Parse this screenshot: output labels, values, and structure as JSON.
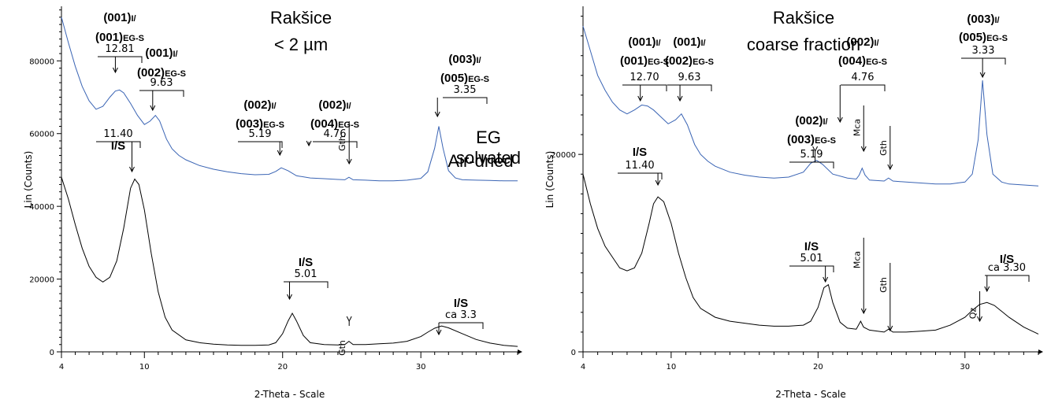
{
  "chart_data": [
    {
      "type": "line",
      "title": "Rakšice",
      "subtitle": "< 2 µm",
      "xlabel": "2-Theta - Scale",
      "ylabel": "Lin (Counts)",
      "xlim": [
        4,
        37
      ],
      "ylim": [
        0,
        95000
      ],
      "x_ticks": [
        4,
        10,
        20,
        30
      ],
      "y_ticks": [
        0,
        20000,
        40000,
        60000,
        80000
      ],
      "grid": false,
      "series": [
        {
          "name": "EG solvated",
          "color": "#3a64b4",
          "points": [
            [
              4,
              92000
            ],
            [
              4.5,
              85000
            ],
            [
              5,
              78500
            ],
            [
              5.5,
              73000
            ],
            [
              6,
              69000
            ],
            [
              6.5,
              66700
            ],
            [
              7,
              67500
            ],
            [
              7.5,
              70000
            ],
            [
              7.9,
              71700
            ],
            [
              8.2,
              72000
            ],
            [
              8.5,
              71200
            ],
            [
              9,
              68300
            ],
            [
              9.5,
              65000
            ],
            [
              10,
              62500
            ],
            [
              10.4,
              63400
            ],
            [
              10.8,
              65000
            ],
            [
              11.1,
              63500
            ],
            [
              11.6,
              58500
            ],
            [
              12,
              55800
            ],
            [
              12.5,
              54000
            ],
            [
              13,
              52800
            ],
            [
              14,
              51200
            ],
            [
              15,
              50200
            ],
            [
              16,
              49500
            ],
            [
              17,
              49000
            ],
            [
              18,
              48700
            ],
            [
              19,
              48800
            ],
            [
              19.5,
              49600
            ],
            [
              19.9,
              50600
            ],
            [
              20.4,
              49800
            ],
            [
              21,
              48400
            ],
            [
              22,
              47800
            ],
            [
              23,
              47600
            ],
            [
              24,
              47400
            ],
            [
              24.5,
              47300
            ],
            [
              24.8,
              48000
            ],
            [
              25.1,
              47300
            ],
            [
              26,
              47200
            ],
            [
              27,
              47000
            ],
            [
              28,
              47000
            ],
            [
              29,
              47200
            ],
            [
              30,
              47700
            ],
            [
              30.5,
              49500
            ],
            [
              31,
              56000
            ],
            [
              31.3,
              62000
            ],
            [
              31.6,
              56000
            ],
            [
              32,
              49800
            ],
            [
              32.5,
              47800
            ],
            [
              33,
              47300
            ],
            [
              34,
              47200
            ],
            [
              35,
              47100
            ],
            [
              36,
              47000
            ],
            [
              37,
              47000
            ]
          ]
        },
        {
          "name": "Air-dried",
          "color": "#000000",
          "points": [
            [
              4,
              48000
            ],
            [
              4.5,
              42000
            ],
            [
              5,
              35000
            ],
            [
              5.5,
              28500
            ],
            [
              6,
              23500
            ],
            [
              6.5,
              20500
            ],
            [
              7,
              19200
            ],
            [
              7.5,
              20500
            ],
            [
              8,
              25000
            ],
            [
              8.5,
              34000
            ],
            [
              9,
              45000
            ],
            [
              9.3,
              47500
            ],
            [
              9.6,
              46000
            ],
            [
              10,
              39000
            ],
            [
              10.5,
              27000
            ],
            [
              11,
              16500
            ],
            [
              11.5,
              9500
            ],
            [
              12,
              6000
            ],
            [
              13,
              3300
            ],
            [
              14,
              2500
            ],
            [
              15,
              2100
            ],
            [
              16,
              1900
            ],
            [
              17,
              1800
            ],
            [
              18,
              1800
            ],
            [
              19,
              1900
            ],
            [
              19.5,
              2500
            ],
            [
              20,
              5000
            ],
            [
              20.4,
              8500
            ],
            [
              20.7,
              10600
            ],
            [
              21,
              8500
            ],
            [
              21.5,
              4500
            ],
            [
              22,
              2500
            ],
            [
              23,
              2000
            ],
            [
              24,
              1900
            ],
            [
              24.5,
              2000
            ],
            [
              24.8,
              2900
            ],
            [
              25.1,
              2000
            ],
            [
              26,
              2000
            ],
            [
              27,
              2200
            ],
            [
              28,
              2400
            ],
            [
              29,
              2900
            ],
            [
              30,
              4200
            ],
            [
              30.5,
              5400
            ],
            [
              31,
              6500
            ],
            [
              31.5,
              7100
            ],
            [
              32,
              6600
            ],
            [
              33,
              5000
            ],
            [
              34,
              3400
            ],
            [
              35,
              2400
            ],
            [
              36,
              1800
            ],
            [
              37,
              1500
            ]
          ]
        }
      ],
      "series_labels": [
        {
          "series": 0,
          "lines": [
            "EG",
            "solvated"
          ]
        },
        {
          "series": 1,
          "lines": [
            "Air-dried"
          ]
        }
      ],
      "annotations": [
        {
          "x": 7.9,
          "lines": [
            "(001)",
            "(001)"
          ],
          "subs": [
            "I/",
            "EG-S"
          ],
          "value": "12.81"
        },
        {
          "x": 10.6,
          "lines": [
            "(001)",
            "(002)"
          ],
          "subs": [
            "I/",
            "EG-S"
          ],
          "value": "9.63"
        },
        {
          "x": 19.8,
          "lines": [
            "(002)",
            "(003)"
          ],
          "subs": [
            "I/",
            "EG-S"
          ],
          "value": "5.19"
        },
        {
          "x": 21.9,
          "lines": [
            "(002)",
            "(004)"
          ],
          "subs": [
            "I/",
            "EG-S"
          ],
          "value": "4.76"
        },
        {
          "x": 24.7,
          "mineral": "Gth"
        },
        {
          "x": 31.2,
          "lines": [
            "(003)",
            "(005)"
          ],
          "subs": [
            "I/",
            "EG-S"
          ],
          "value": "3.35"
        },
        {
          "x": 9.1,
          "lines": [
            "I/S"
          ],
          "value": "11.40",
          "value_above": true
        },
        {
          "x": 20.5,
          "lines": [
            "I/S"
          ],
          "value": "5.01"
        },
        {
          "x": 24.7,
          "mineral": "Gth",
          "lower": true
        },
        {
          "x": 31.3,
          "lines": [
            "I/S"
          ],
          "value": "ca 3.3"
        }
      ]
    },
    {
      "type": "line",
      "title": "Rakšice",
      "subtitle": "coarse fraction",
      "xlabel": "2-Theta - Scale",
      "ylabel": "Lin (Counts)",
      "xlim": [
        4,
        35
      ],
      "ylim": [
        0,
        35000
      ],
      "x_ticks": [
        4,
        10,
        20,
        30
      ],
      "y_ticks": [
        0,
        20000
      ],
      "grid": false,
      "series": [
        {
          "name": "EG solvated",
          "color": "#3a64b4",
          "points": [
            [
              4,
              33000
            ],
            [
              4.5,
              30500
            ],
            [
              5,
              28000
            ],
            [
              5.5,
              26500
            ],
            [
              6,
              25300
            ],
            [
              6.5,
              24500
            ],
            [
              7,
              24100
            ],
            [
              7.5,
              24500
            ],
            [
              8,
              25000
            ],
            [
              8.4,
              24900
            ],
            [
              8.8,
              24500
            ],
            [
              9.3,
              23800
            ],
            [
              9.8,
              23100
            ],
            [
              10.3,
              23500
            ],
            [
              10.7,
              24100
            ],
            [
              11.1,
              23000
            ],
            [
              11.6,
              21000
            ],
            [
              12,
              20000
            ],
            [
              12.5,
              19300
            ],
            [
              13,
              18800
            ],
            [
              14,
              18200
            ],
            [
              15,
              17900
            ],
            [
              16,
              17700
            ],
            [
              17,
              17600
            ],
            [
              18,
              17700
            ],
            [
              19,
              18200
            ],
            [
              19.5,
              19100
            ],
            [
              19.9,
              19400
            ],
            [
              20.3,
              19000
            ],
            [
              21,
              18000
            ],
            [
              22,
              17600
            ],
            [
              22.6,
              17500
            ],
            [
              22.8,
              17900
            ],
            [
              23,
              18600
            ],
            [
              23.2,
              17900
            ],
            [
              23.5,
              17400
            ],
            [
              24.5,
              17300
            ],
            [
              24.8,
              17600
            ],
            [
              25.1,
              17300
            ],
            [
              26,
              17200
            ],
            [
              28,
              17000
            ],
            [
              29,
              17000
            ],
            [
              30,
              17200
            ],
            [
              30.5,
              18000
            ],
            [
              30.9,
              21500
            ],
            [
              31.2,
              27500
            ],
            [
              31.5,
              22000
            ],
            [
              31.9,
              18000
            ],
            [
              32.5,
              17200
            ],
            [
              33,
              17000
            ],
            [
              34,
              16900
            ],
            [
              35,
              16800
            ]
          ]
        },
        {
          "name": "Air-dried",
          "color": "#000000",
          "points": [
            [
              4,
              18000
            ],
            [
              4.5,
              15000
            ],
            [
              5,
              12500
            ],
            [
              5.5,
              10700
            ],
            [
              6,
              9600
            ],
            [
              6.5,
              8500
            ],
            [
              7,
              8200
            ],
            [
              7.5,
              8500
            ],
            [
              8,
              10000
            ],
            [
              8.5,
              13000
            ],
            [
              8.8,
              15000
            ],
            [
              9.1,
              15700
            ],
            [
              9.5,
              15200
            ],
            [
              10,
              13000
            ],
            [
              10.5,
              10000
            ],
            [
              11,
              7500
            ],
            [
              11.5,
              5500
            ],
            [
              12,
              4400
            ],
            [
              13,
              3500
            ],
            [
              14,
              3100
            ],
            [
              15,
              2900
            ],
            [
              16,
              2700
            ],
            [
              17,
              2600
            ],
            [
              18,
              2600
            ],
            [
              19,
              2700
            ],
            [
              19.5,
              3100
            ],
            [
              20,
              4500
            ],
            [
              20.4,
              6500
            ],
            [
              20.7,
              6800
            ],
            [
              21,
              5000
            ],
            [
              21.5,
              3000
            ],
            [
              22,
              2400
            ],
            [
              22.6,
              2300
            ],
            [
              22.9,
              3100
            ],
            [
              23.1,
              2500
            ],
            [
              23.5,
              2200
            ],
            [
              24.5,
              2000
            ],
            [
              24.8,
              2300
            ],
            [
              25.1,
              2000
            ],
            [
              26,
              2000
            ],
            [
              27,
              2100
            ],
            [
              28,
              2200
            ],
            [
              29,
              2700
            ],
            [
              30,
              3500
            ],
            [
              30.5,
              4200
            ],
            [
              31,
              4800
            ],
            [
              31.5,
              5000
            ],
            [
              32,
              4700
            ],
            [
              33,
              3500
            ],
            [
              34,
              2500
            ],
            [
              35,
              1800
            ]
          ]
        }
      ],
      "series_labels": [],
      "annotations": [
        {
          "x": 7.9,
          "lines": [
            "(001)",
            "(001)"
          ],
          "subs": [
            "I/",
            "EG-S"
          ],
          "value": "12.70"
        },
        {
          "x": 10.6,
          "lines": [
            "(001)",
            "(002)"
          ],
          "subs": [
            "I/",
            "EG-S"
          ],
          "value": "9.63"
        },
        {
          "x": 19.8,
          "lines": [
            "(002)",
            "(003)"
          ],
          "subs": [
            "I/",
            "EG-S"
          ],
          "value": "5.19"
        },
        {
          "x": 21.5,
          "lines": [
            "(002)",
            "(004)"
          ],
          "subs": [
            "I/",
            "EG-S"
          ],
          "value": "4.76"
        },
        {
          "x": 23.0,
          "mineral": "Mca"
        },
        {
          "x": 24.8,
          "mineral": "Gth"
        },
        {
          "x": 31.2,
          "lines": [
            "(003)",
            "(005)"
          ],
          "subs": [
            "I/",
            "EG-S"
          ],
          "value": "3.33",
          "high": true
        },
        {
          "x": 9.1,
          "lines": [
            "I/S"
          ],
          "value": "11.40",
          "value_below": true
        },
        {
          "x": 20.5,
          "lines": [
            "I/S"
          ],
          "value": "5.01"
        },
        {
          "x": 23.0,
          "mineral": "Mca",
          "lower": true
        },
        {
          "x": 24.8,
          "mineral": "Gth",
          "lower": true
        },
        {
          "x": 30.9,
          "mineral": "Qz",
          "lower": true,
          "horizontal": true
        },
        {
          "x": 31.5,
          "lines": [
            "I/S"
          ],
          "value": "ca 3.30"
        }
      ]
    }
  ]
}
